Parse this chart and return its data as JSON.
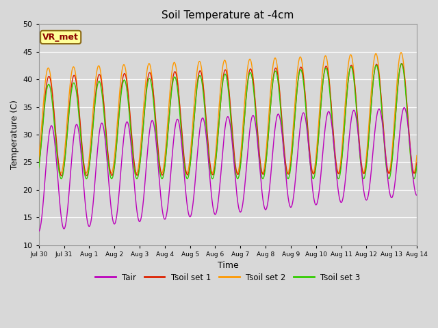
{
  "title": "Soil Temperature at -4cm",
  "xlabel": "Time",
  "ylabel": "Temperature (C)",
  "ylim": [
    10,
    50
  ],
  "yticks": [
    10,
    15,
    20,
    25,
    30,
    35,
    40,
    45,
    50
  ],
  "background_color": "#d8d8d8",
  "plot_bg_color": "#d8d8d8",
  "annotation_text": "VR_met",
  "annotation_bg": "#ffff99",
  "annotation_border": "#8B6914",
  "line_colors": {
    "Tair": "#bb00bb",
    "Tsoil_set1": "#dd2200",
    "Tsoil_set2": "#ff9900",
    "Tsoil_set3": "#33cc00"
  },
  "legend_labels": [
    "Tair",
    "Tsoil set 1",
    "Tsoil set 2",
    "Tsoil set 3"
  ],
  "xtick_labels": [
    "Jul 30",
    "Jul 31",
    "Aug 1",
    "Aug 2",
    "Aug 3",
    "Aug 4",
    "Aug 5",
    "Aug 6",
    "Aug 7",
    "Aug 8",
    "Aug 9",
    "Aug 10",
    "Aug 11",
    "Aug 12",
    "Aug 13",
    "Aug 14"
  ],
  "n_days": 15,
  "pts_per_day": 144
}
